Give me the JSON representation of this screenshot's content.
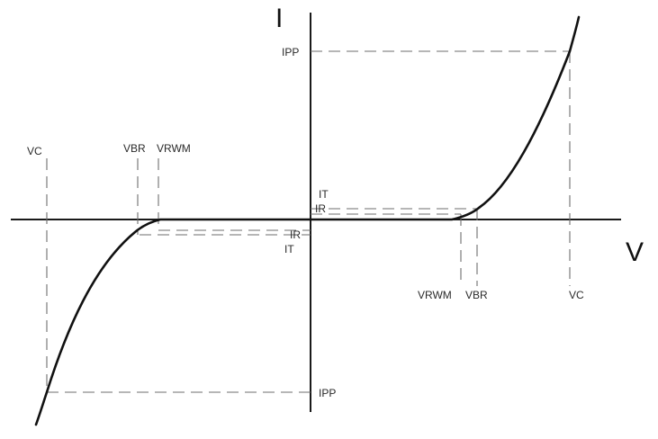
{
  "axes": {
    "voltage": "V",
    "current": "I"
  },
  "labels": {
    "ipp_top": "IPP",
    "ipp_bottom": "IPP",
    "it_right": "IT",
    "ir_right": "IR",
    "ir_left": "IR",
    "it_left": "IT",
    "vc_left": "VC",
    "vbr_left": "VBR",
    "vrwm_left": "VRWM",
    "vrwm_right": "VRWM",
    "vbr_right": "VBR",
    "vc_right": "VC"
  },
  "colors": {
    "curve": "#111111",
    "axis": "#1a1a1a",
    "dashed": "#6e6e6e",
    "text": "#2a2a2a"
  }
}
